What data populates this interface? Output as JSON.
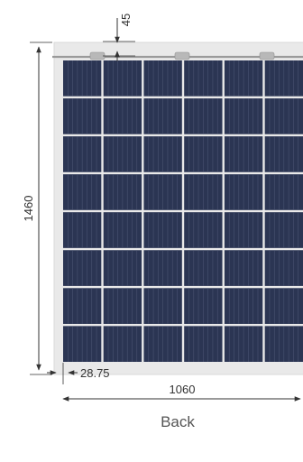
{
  "diagram": {
    "top_dimension": "45",
    "height_dimension": "1460",
    "side_offset_dimension": "28.75",
    "width_dimension": "1060",
    "view_label": "Back"
  },
  "panel": {
    "cell_columns": 6,
    "cell_rows": 8,
    "junction_boxes": 3,
    "colors": {
      "frame": "#e6e6e6",
      "cell": "#2b3553",
      "cell_line": "#4a5472",
      "grid_gap": "#f4f4f4",
      "dimension_line": "#333333"
    }
  }
}
